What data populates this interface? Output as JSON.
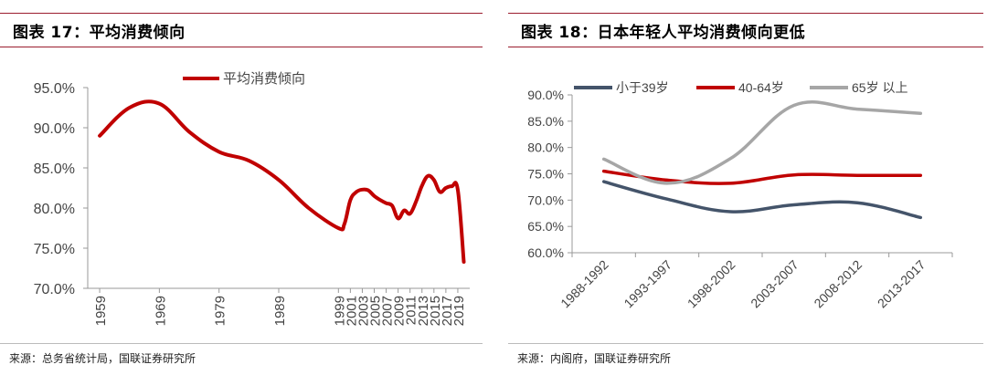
{
  "left": {
    "title": "图表 17：平均消费倾向",
    "source": "来源：总务省统计局，国联证券研究所",
    "chart_data": {
      "type": "line",
      "x": [
        "1959",
        "1969",
        "1979",
        "1989",
        "1999",
        "2001",
        "2003",
        "2005",
        "2007",
        "2009",
        "2011",
        "2013",
        "2015",
        "2017",
        "2019"
      ],
      "xnum": [
        1959,
        1969,
        1979,
        1989,
        1999,
        2001,
        2003,
        2005,
        2007,
        2009,
        2011,
        2013,
        2015,
        2017,
        2019
      ],
      "yticks": [
        "70.0%",
        "75.0%",
        "80.0%",
        "85.0%",
        "90.0%",
        "95.0%"
      ],
      "ylim": [
        70,
        95
      ],
      "series": [
        {
          "name": "平均消费倾向",
          "color": "#c00000",
          "points": [
            [
              1959,
              89.0
            ],
            [
              1964,
              92.5
            ],
            [
              1969,
              93.0
            ],
            [
              1974,
              89.5
            ],
            [
              1979,
              87.0
            ],
            [
              1984,
              85.9
            ],
            [
              1989,
              83.5
            ],
            [
              1994,
              80.0
            ],
            [
              1999,
              77.5
            ],
            [
              2000,
              78.0
            ],
            [
              2001,
              81.0
            ],
            [
              2002,
              82.0
            ],
            [
              2003,
              82.3
            ],
            [
              2004,
              82.2
            ],
            [
              2005,
              81.5
            ],
            [
              2006,
              81.0
            ],
            [
              2007,
              80.6
            ],
            [
              2008,
              80.3
            ],
            [
              2009,
              78.7
            ],
            [
              2010,
              79.7
            ],
            [
              2011,
              79.3
            ],
            [
              2012,
              80.8
            ],
            [
              2013,
              82.8
            ],
            [
              2014,
              84.0
            ],
            [
              2015,
              83.5
            ],
            [
              2016,
              82.0
            ],
            [
              2017,
              82.5
            ],
            [
              2018,
              82.7
            ],
            [
              2019,
              82.3
            ],
            [
              2020,
              73.3
            ]
          ]
        }
      ]
    }
  },
  "right": {
    "title": "图表 18：日本年轻人平均消费倾向更低",
    "source": "来源：内阁府，国联证券研究所",
    "chart_data": {
      "type": "line",
      "categories": [
        "1988-1992",
        "1993-1997",
        "1998-2002",
        "2003-2007",
        "2008-2012",
        "2013-2017"
      ],
      "yticks": [
        "60.0%",
        "65.0%",
        "70.0%",
        "75.0%",
        "80.0%",
        "85.0%",
        "90.0%"
      ],
      "ylim": [
        60,
        90
      ],
      "series": [
        {
          "name": "小于39岁",
          "color": "#44546a",
          "values": [
            73.5,
            70.2,
            67.8,
            69.1,
            69.5,
            66.7
          ]
        },
        {
          "name": "40-64岁",
          "color": "#c00000",
          "values": [
            75.5,
            73.8,
            73.2,
            74.8,
            74.7,
            74.7
          ]
        },
        {
          "name": "65岁 以上",
          "color": "#a6a6a6",
          "values": [
            77.8,
            73.2,
            77.9,
            88.0,
            87.3,
            86.5
          ]
        }
      ]
    }
  }
}
